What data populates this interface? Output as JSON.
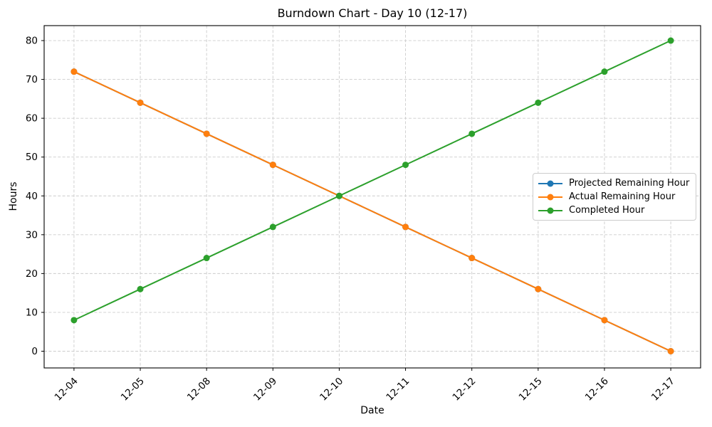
{
  "figure": {
    "background": "#ffffff",
    "text_color": "#000000",
    "grid_color": "#cccccc"
  },
  "chart_data": {
    "type": "line",
    "title": "Burndown Chart - Day 10 (12-17)",
    "xlabel": "Date",
    "ylabel": "Hours",
    "categories": [
      "12-04",
      "12-05",
      "12-08",
      "12-09",
      "12-10",
      "12-11",
      "12-12",
      "12-15",
      "12-16",
      "12-17"
    ],
    "series": [
      {
        "name": "Projected Remaining Hour",
        "color": "#1f77b4",
        "marker": "circle",
        "values": [
          72,
          64,
          56,
          48,
          40,
          32,
          24,
          16,
          8,
          0
        ]
      },
      {
        "name": "Actual Remaining Hour",
        "color": "#ff7f0e",
        "marker": "circle",
        "values": [
          72,
          64,
          56,
          48,
          40,
          32,
          24,
          16,
          8,
          0
        ]
      },
      {
        "name": "Completed Hour",
        "color": "#2ca02c",
        "marker": "circle",
        "values": [
          8,
          16,
          24,
          32,
          40,
          48,
          56,
          64,
          72,
          80
        ]
      }
    ],
    "yticks": [
      0,
      10,
      20,
      30,
      40,
      50,
      60,
      70,
      80
    ],
    "ylim": [
      0,
      80
    ],
    "grid": true,
    "grid_style": "dashed",
    "x_tick_rotation": 45,
    "legend": {
      "position": "center right",
      "entries": [
        "Projected Remaining Hour",
        "Actual Remaining Hour",
        "Completed Hour"
      ]
    }
  }
}
